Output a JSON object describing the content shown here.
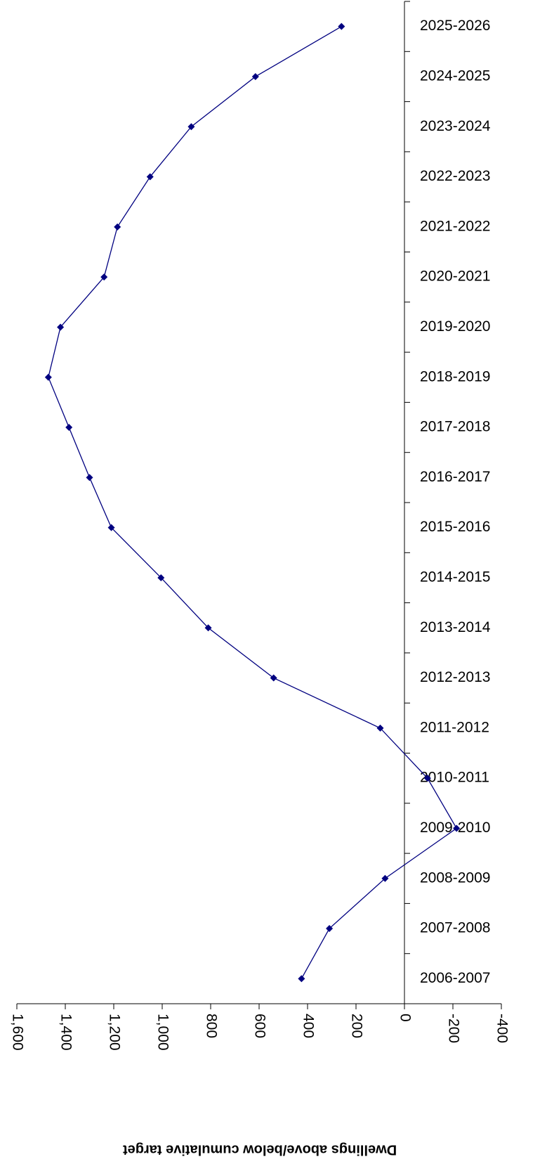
{
  "chart_data": {
    "type": "line",
    "ylabel": "Dwellings above/below cumulative target",
    "categories": [
      "2006-2007",
      "2007-2008",
      "2008-2009",
      "2009-2010",
      "2010-2011",
      "2011-2012",
      "2012-2013",
      "2013-2014",
      "2014-2015",
      "2015-2016",
      "2016-2017",
      "2017-2018",
      "2018-2019",
      "2019-2020",
      "2020-2021",
      "2021-2022",
      "2022-2023",
      "2023-2024",
      "2024-2025",
      "2025-2026"
    ],
    "series": [
      {
        "name": "Dwellings",
        "color": "#000080",
        "values": [
          425,
          310,
          80,
          -215,
          -95,
          100,
          540,
          810,
          1005,
          1210,
          1300,
          1385,
          1470,
          1420,
          1240,
          1185,
          1050,
          880,
          615,
          260
        ]
      }
    ],
    "ylim": [
      -400,
      1600
    ],
    "yticks": [
      {
        "value": 1600,
        "label": "1,600"
      },
      {
        "value": 1400,
        "label": "1,400"
      },
      {
        "value": 1200,
        "label": "1,200"
      },
      {
        "value": 1000,
        "label": "1,000"
      },
      800,
      600,
      400,
      200,
      0,
      -200,
      -400
    ],
    "value_axis_reversed": true,
    "marker": "diamond"
  }
}
